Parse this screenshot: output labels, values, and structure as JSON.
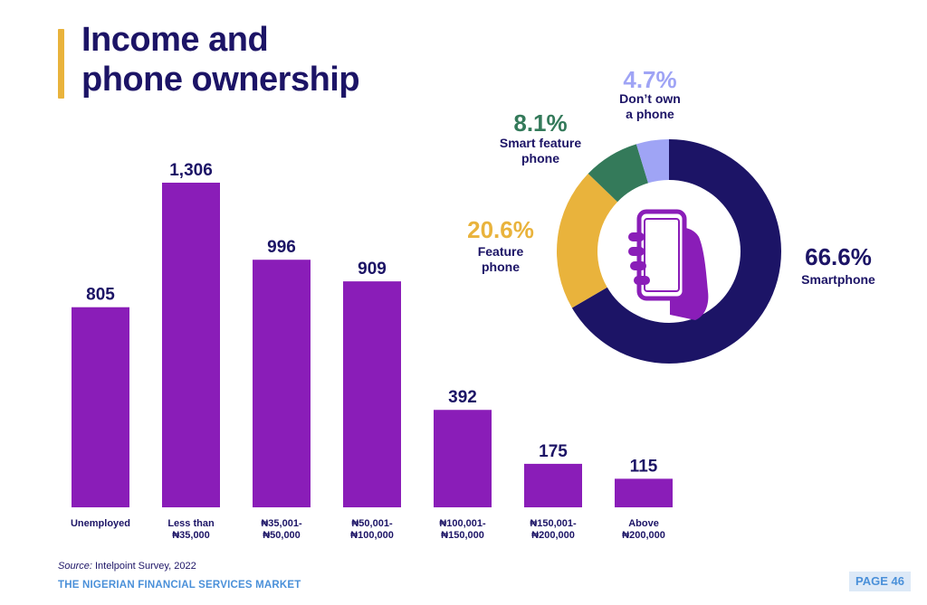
{
  "header": {
    "title_line1": "Income and",
    "title_line2": "phone ownership"
  },
  "colors": {
    "navy": "#1c1466",
    "purple": "#8a1db8",
    "gold": "#e9b33c",
    "green": "#347a5a",
    "lavender": "#9fa4f5",
    "footer_blue": "#4a90d9"
  },
  "chart_data": [
    {
      "type": "bar",
      "categories": [
        [
          "Unemployed"
        ],
        [
          "Less than",
          "₦35,000"
        ],
        [
          "₦35,001-",
          "₦50,000"
        ],
        [
          "₦50,001-",
          "₦100,000"
        ],
        [
          "₦100,001-",
          "₦150,000"
        ],
        [
          "₦150,001-",
          "₦200,000"
        ],
        [
          "Above",
          "₦200,000"
        ]
      ],
      "values": [
        805,
        1306,
        996,
        909,
        392,
        175,
        115
      ],
      "value_labels": [
        "805",
        "1,306",
        "996",
        "909",
        "392",
        "175",
        "115"
      ],
      "ylim": [
        0,
        1306
      ],
      "grid": false,
      "color": "#8a1db8"
    },
    {
      "type": "pie",
      "donut": true,
      "slices": [
        {
          "pct_label": "66.6%",
          "label": [
            "Smartphone"
          ],
          "value": 66.6,
          "color": "#1c1466"
        },
        {
          "pct_label": "20.6%",
          "label": [
            "Feature",
            "phone"
          ],
          "value": 20.6,
          "color": "#e9b33c"
        },
        {
          "pct_label": "8.1%",
          "label": [
            "Smart feature",
            "phone"
          ],
          "value": 8.1,
          "color": "#347a5a"
        },
        {
          "pct_label": "4.7%",
          "label": [
            "Don’t own",
            "a phone"
          ],
          "value": 4.7,
          "color": "#9fa4f5"
        }
      ],
      "center_icon": "hand-holding-phone-icon"
    }
  ],
  "footer": {
    "source_prefix": "Source:",
    "source_text": " Intelpoint Survey, 2022",
    "publication": "THE NIGERIAN FINANCIAL SERVICES MARKET",
    "page": "PAGE 46"
  }
}
